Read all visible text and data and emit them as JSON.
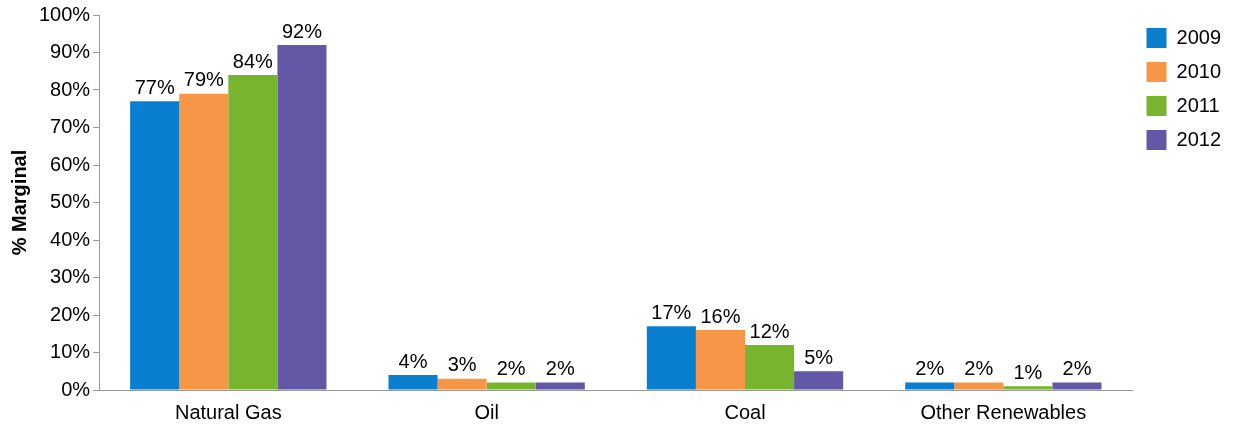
{
  "chart_data": {
    "type": "bar",
    "ylabel": "% Marginal",
    "categories": [
      "Natural Gas",
      "Oil",
      "Coal",
      "Other Renewables"
    ],
    "series": [
      {
        "name": "2009",
        "color": "#0a7fcf",
        "values": [
          77,
          4,
          17,
          2
        ],
        "value_labels": [
          "77%",
          "4%",
          "17%",
          "2%"
        ]
      },
      {
        "name": "2010",
        "color": "#f79646",
        "values": [
          79,
          3,
          16,
          2
        ],
        "value_labels": [
          "79%",
          "3%",
          "16%",
          "2%"
        ]
      },
      {
        "name": "2011",
        "color": "#77b52f",
        "values": [
          84,
          2,
          12,
          1
        ],
        "value_labels": [
          "84%",
          "2%",
          "12%",
          "1%"
        ]
      },
      {
        "name": "2012",
        "color": "#6358a6",
        "values": [
          92,
          2,
          5,
          2
        ],
        "value_labels": [
          "92%",
          "2%",
          "5%",
          "2%"
        ]
      }
    ],
    "ylim": [
      0,
      100
    ],
    "yticks": [
      {
        "value": 0,
        "label": "0%"
      },
      {
        "value": 10,
        "label": "10%"
      },
      {
        "value": 20,
        "label": "20%"
      },
      {
        "value": 30,
        "label": "30%"
      },
      {
        "value": 40,
        "label": "40%"
      },
      {
        "value": 50,
        "label": "50%"
      },
      {
        "value": 60,
        "label": "60%"
      },
      {
        "value": 70,
        "label": "70%"
      },
      {
        "value": 80,
        "label": "80%"
      },
      {
        "value": 90,
        "label": "90%"
      },
      {
        "value": 100,
        "label": "100%"
      }
    ],
    "grid": false,
    "legend": "top right"
  }
}
